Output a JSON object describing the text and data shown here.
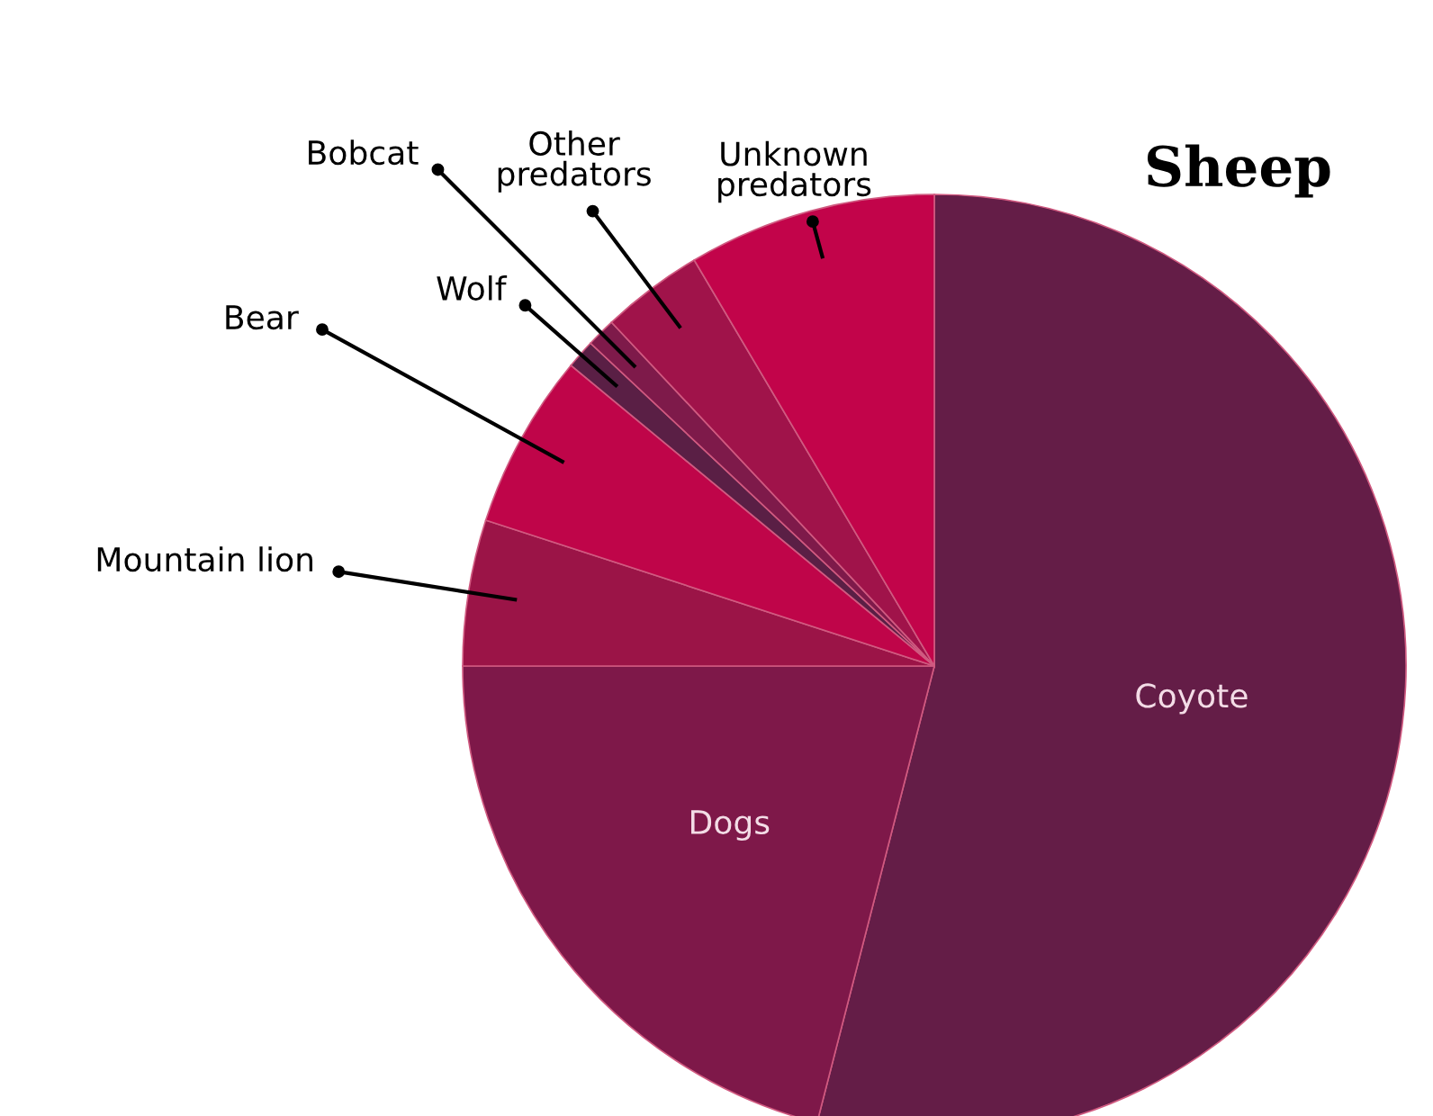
{
  "chart_data": {
    "type": "pie",
    "title": "Sheep",
    "categories": [
      "Coyote",
      "Dogs",
      "Mountain lion",
      "Bear",
      "Wolf",
      "Bobcat",
      "Other predators",
      "Unknown predators"
    ],
    "values": [
      54,
      21,
      5,
      6,
      1,
      1,
      3.5,
      8.5
    ],
    "colors": [
      "#641d47",
      "#7e1849",
      "#9b1447",
      "#bf0549",
      "#5a1f45",
      "#7e1a4a",
      "#a0134a",
      "#c2044a"
    ],
    "legend": false
  }
}
